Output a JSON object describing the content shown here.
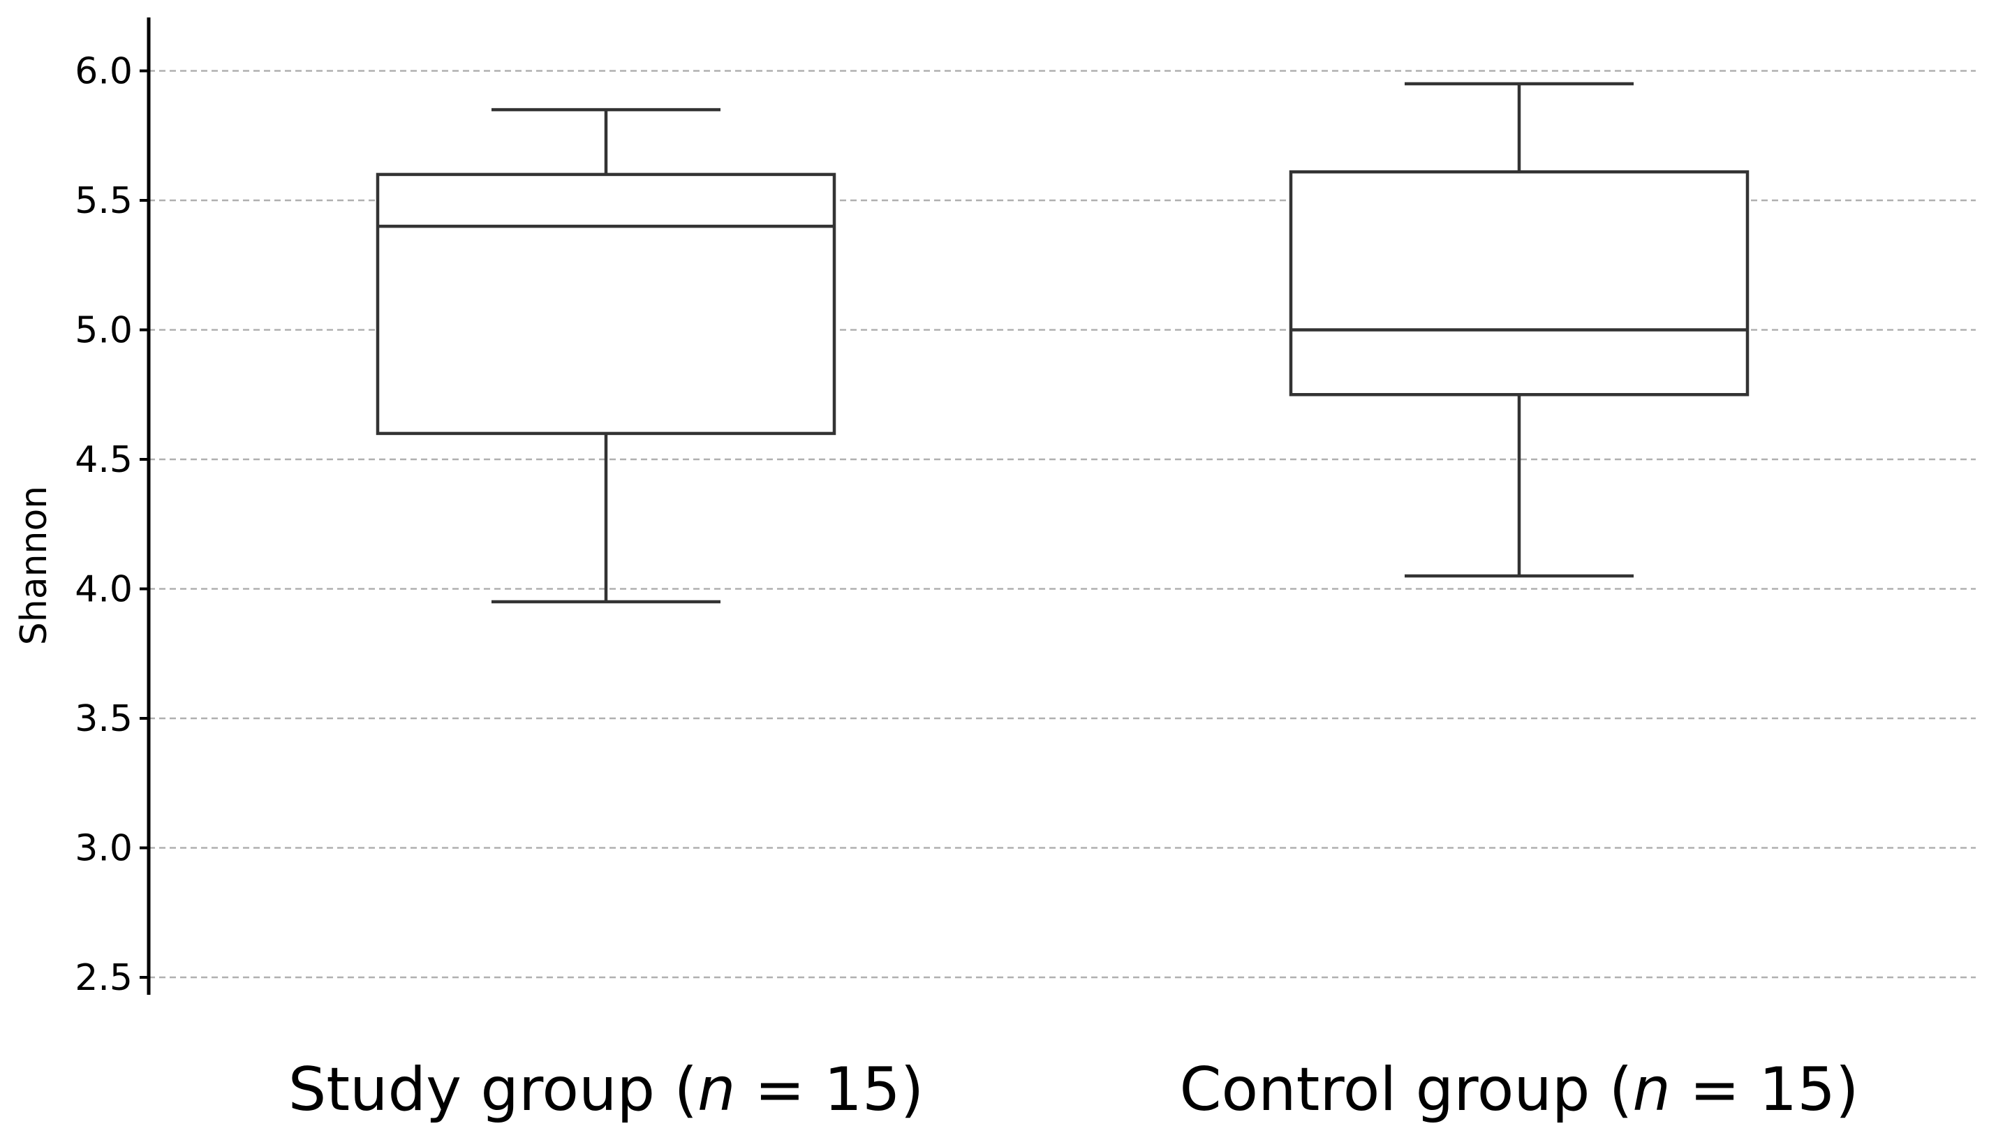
{
  "chart_data": {
    "type": "boxplot",
    "title": "",
    "xlabel": "",
    "ylabel": "Shannon",
    "ylim": [
      2.5,
      6.2
    ],
    "yticks": [
      2.5,
      3.0,
      3.5,
      4.0,
      4.5,
      5.0,
      5.5,
      6.0
    ],
    "ytick_labels": [
      "2.5",
      "3.0",
      "3.5",
      "4.0",
      "4.5",
      "5.0",
      "5.5",
      "6.0"
    ],
    "grid": "horizontal dashed",
    "categories": [
      {
        "label_prefix": "Study group (",
        "label_n": "n",
        "label_suffix": " = 15)"
      },
      {
        "label_prefix": "Control group (",
        "label_n": "n",
        "label_suffix": " = 15)"
      }
    ],
    "boxes": [
      {
        "whisker_low": 3.95,
        "q1": 4.6,
        "median": 5.4,
        "q3": 5.6,
        "whisker_high": 5.85
      },
      {
        "whisker_low": 4.05,
        "q1": 4.75,
        "median": 5.0,
        "q3": 5.61,
        "whisker_high": 5.95
      }
    ],
    "colors": {
      "box_edge": "#333333",
      "grid": "#b0b0b0",
      "axis": "#000000"
    }
  }
}
